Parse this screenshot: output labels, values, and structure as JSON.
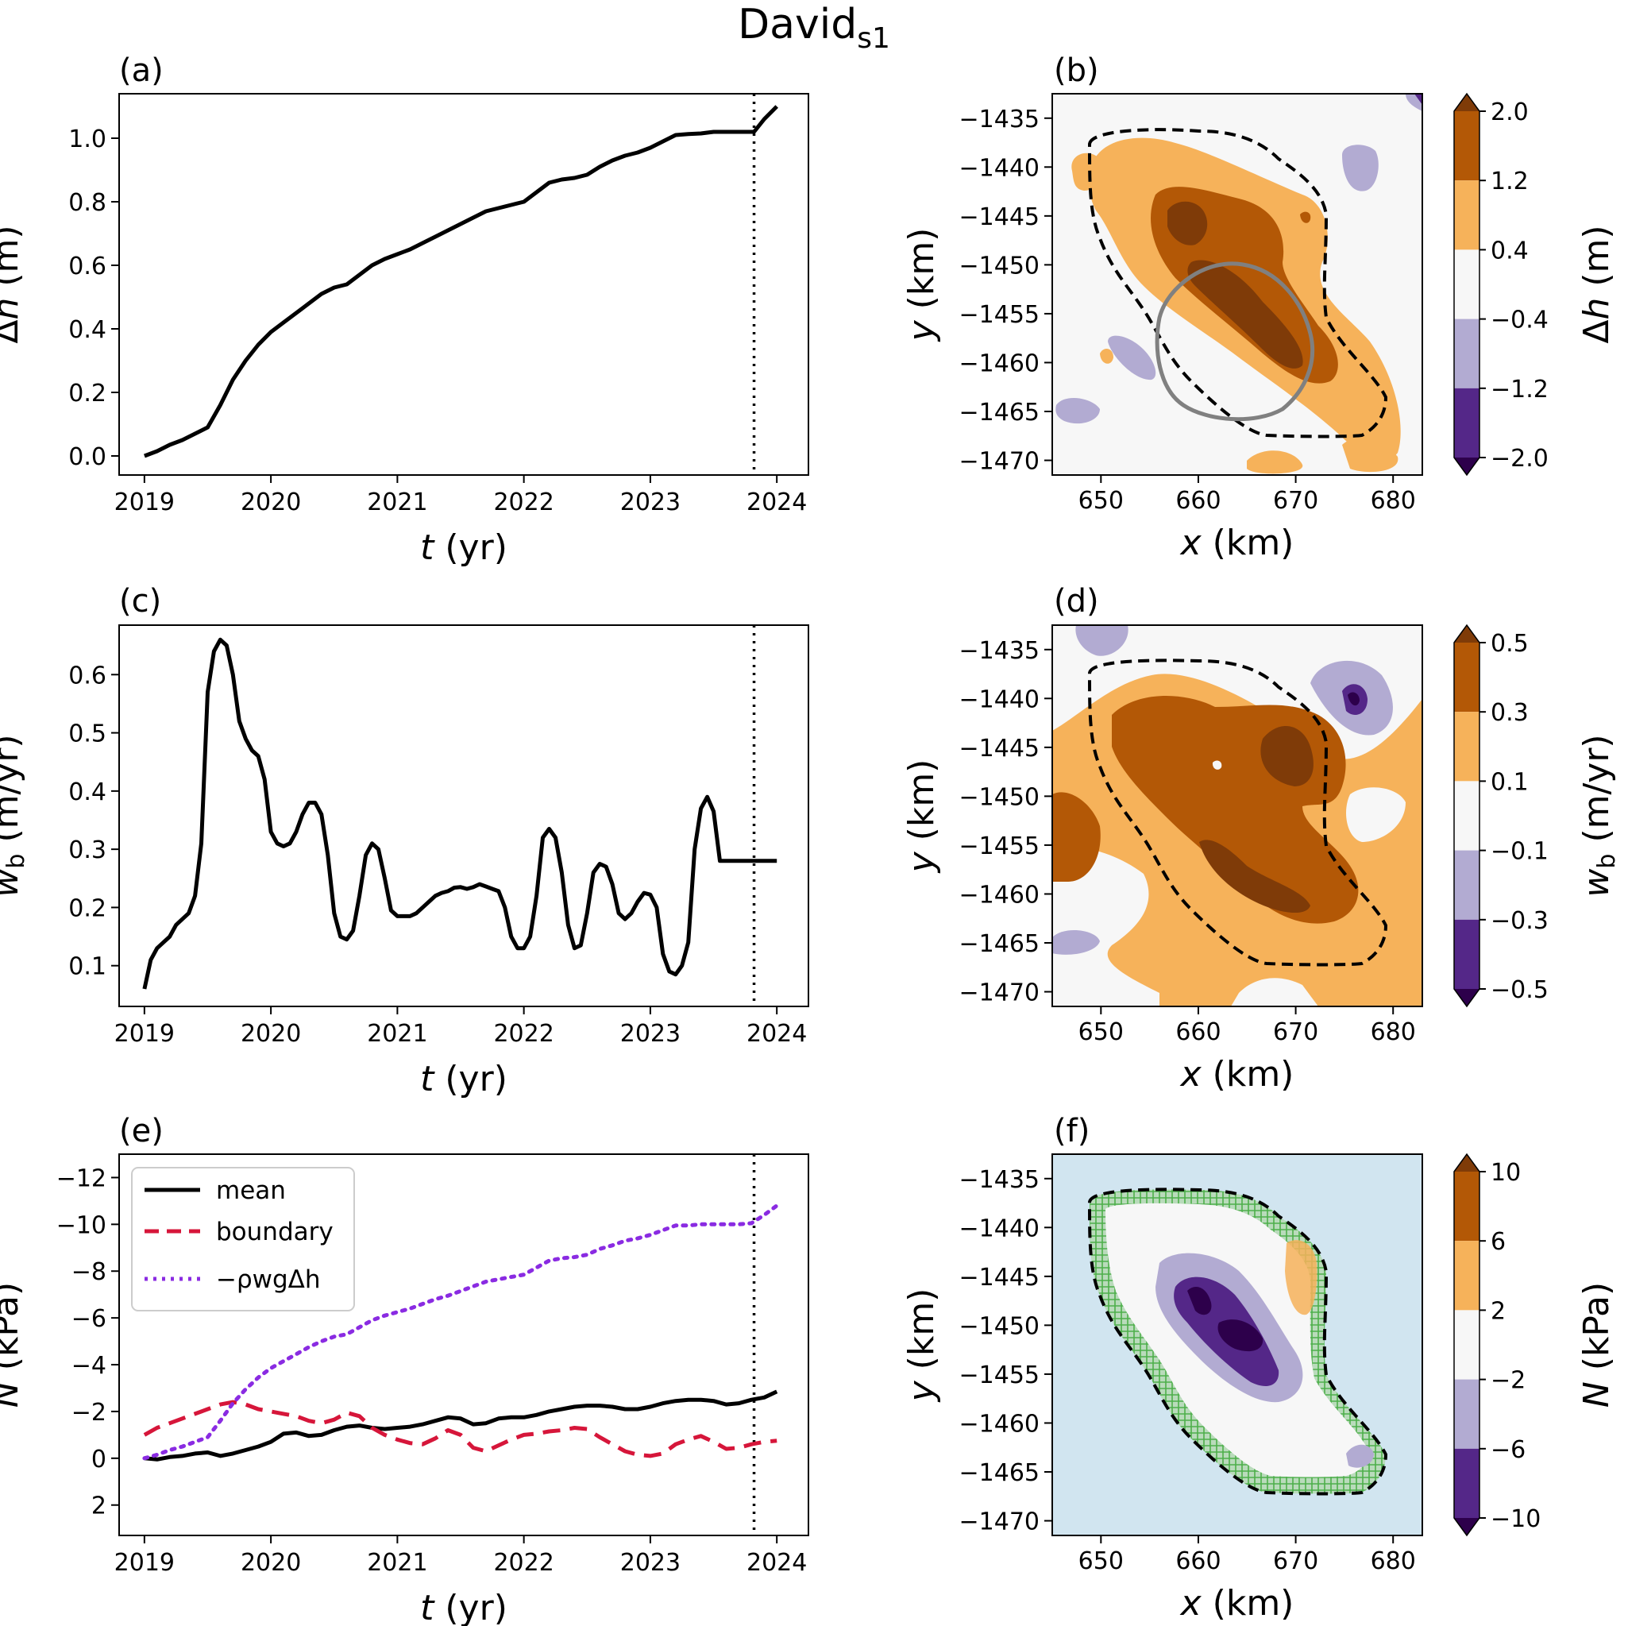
{
  "figure_title": "David",
  "figure_title_sub": "s1",
  "colors": {
    "brown_dark": "#7f3b08",
    "brown": "#b35806",
    "orange": "#f6b25a",
    "neutral": "#f7f7f7",
    "lavender": "#b2abd2",
    "purple": "#542788",
    "purple_dark": "#2d004b",
    "lake_bg": "#d1e5f0",
    "mesh": "#4daf4a",
    "outline_gray": "#808080",
    "boundary_red": "#d6163a",
    "rho_purple": "#8a2be2"
  },
  "chart_data": [
    {
      "panel": "(a)",
      "type": "line",
      "xlabel": "t (yr)",
      "ylabel": "Δh (m)",
      "xlim": [
        2018.8,
        2024.25
      ],
      "ylim": [
        -0.06,
        1.14
      ],
      "xticks": [
        2019,
        2020,
        2021,
        2022,
        2023,
        2024
      ],
      "yticks": [
        0.0,
        0.2,
        0.4,
        0.6,
        0.8,
        1.0
      ],
      "ytick_labels": [
        "0.0",
        "0.2",
        "0.4",
        "0.6",
        "0.8",
        "1.0"
      ],
      "vline": 2023.82,
      "series": [
        {
          "name": "mean Δh",
          "style": "solid",
          "color": "#000000",
          "x": [
            2019.0,
            2019.1,
            2019.2,
            2019.3,
            2019.4,
            2019.5,
            2019.6,
            2019.7,
            2019.8,
            2019.9,
            2020.0,
            2020.1,
            2020.2,
            2020.3,
            2020.4,
            2020.5,
            2020.6,
            2020.7,
            2020.8,
            2020.9,
            2021.0,
            2021.1,
            2021.2,
            2021.3,
            2021.4,
            2021.5,
            2021.6,
            2021.7,
            2021.8,
            2021.9,
            2022.0,
            2022.1,
            2022.2,
            2022.3,
            2022.4,
            2022.5,
            2022.6,
            2022.7,
            2022.8,
            2022.9,
            2023.0,
            2023.1,
            2023.2,
            2023.3,
            2023.4,
            2023.5,
            2023.6,
            2023.7,
            2023.82,
            2023.9,
            2024.0
          ],
          "y": [
            0.0,
            0.015,
            0.035,
            0.05,
            0.07,
            0.09,
            0.16,
            0.24,
            0.3,
            0.35,
            0.39,
            0.42,
            0.45,
            0.48,
            0.51,
            0.53,
            0.54,
            0.57,
            0.6,
            0.62,
            0.635,
            0.65,
            0.67,
            0.69,
            0.71,
            0.73,
            0.75,
            0.77,
            0.78,
            0.79,
            0.8,
            0.83,
            0.86,
            0.87,
            0.875,
            0.885,
            0.91,
            0.93,
            0.945,
            0.955,
            0.97,
            0.99,
            1.01,
            1.013,
            1.015,
            1.02,
            1.02,
            1.02,
            1.02,
            1.06,
            1.1
          ]
        }
      ]
    },
    {
      "panel": "(b)",
      "type": "heatmap",
      "xlabel": "x (km)",
      "ylabel": "y (km)",
      "xlim": [
        645,
        683
      ],
      "ylim": [
        -1471.5,
        -1432.5
      ],
      "xticks": [
        650,
        660,
        670,
        680
      ],
      "yticks": [
        -1435,
        -1440,
        -1445,
        -1450,
        -1455,
        -1460,
        -1465,
        -1470
      ],
      "ytick_labels": [
        "−1435",
        "−1440",
        "−1445",
        "−1450",
        "−1455",
        "−1460",
        "−1465",
        "−1470"
      ],
      "colorbar": {
        "label": "Δh (m)",
        "levels": [
          2.0,
          1.2,
          0.4,
          -0.4,
          -1.2,
          -2.0
        ],
        "level_labels": [
          "2.0",
          "1.2",
          "0.4",
          "−0.4",
          "−1.2",
          "−2.0"
        ],
        "extend": "both"
      },
      "overlays": [
        "dashed lake outline",
        "gray circle outline"
      ]
    },
    {
      "panel": "(c)",
      "type": "line",
      "xlabel": "t (yr)",
      "ylabel": "w_b (m/yr)",
      "xlim": [
        2018.8,
        2024.25
      ],
      "ylim": [
        0.03,
        0.685
      ],
      "xticks": [
        2019,
        2020,
        2021,
        2022,
        2023,
        2024
      ],
      "yticks": [
        0.1,
        0.2,
        0.3,
        0.4,
        0.5,
        0.6
      ],
      "ytick_labels": [
        "0.1",
        "0.2",
        "0.3",
        "0.4",
        "0.5",
        "0.6"
      ],
      "vline": 2023.82,
      "series": [
        {
          "name": "mean w_b",
          "style": "solid",
          "color": "#000000",
          "x": [
            2019.0,
            2019.05,
            2019.1,
            2019.15,
            2019.2,
            2019.25,
            2019.3,
            2019.35,
            2019.4,
            2019.45,
            2019.5,
            2019.55,
            2019.6,
            2019.65,
            2019.7,
            2019.75,
            2019.8,
            2019.85,
            2019.9,
            2019.95,
            2020.0,
            2020.05,
            2020.1,
            2020.15,
            2020.2,
            2020.25,
            2020.3,
            2020.35,
            2020.4,
            2020.45,
            2020.5,
            2020.55,
            2020.6,
            2020.65,
            2020.7,
            2020.75,
            2020.8,
            2020.85,
            2020.9,
            2020.95,
            2021.0,
            2021.05,
            2021.1,
            2021.15,
            2021.2,
            2021.25,
            2021.3,
            2021.35,
            2021.4,
            2021.45,
            2021.5,
            2021.55,
            2021.6,
            2021.65,
            2021.7,
            2021.75,
            2021.8,
            2021.85,
            2021.9,
            2021.95,
            2022.0,
            2022.05,
            2022.1,
            2022.15,
            2022.2,
            2022.25,
            2022.3,
            2022.35,
            2022.4,
            2022.45,
            2022.5,
            2022.55,
            2022.6,
            2022.65,
            2022.7,
            2022.75,
            2022.8,
            2022.85,
            2022.9,
            2022.95,
            2023.0,
            2023.05,
            2023.1,
            2023.15,
            2023.2,
            2023.25,
            2023.3,
            2023.35,
            2023.4,
            2023.45,
            2023.5,
            2023.55,
            2023.6,
            2023.65,
            2023.7,
            2023.75,
            2023.8,
            2023.85,
            2023.9,
            2023.95,
            2024.0
          ],
          "y": [
            0.06,
            0.11,
            0.13,
            0.14,
            0.15,
            0.17,
            0.18,
            0.19,
            0.22,
            0.31,
            0.57,
            0.64,
            0.66,
            0.65,
            0.6,
            0.52,
            0.49,
            0.47,
            0.46,
            0.42,
            0.33,
            0.31,
            0.305,
            0.31,
            0.33,
            0.36,
            0.38,
            0.38,
            0.36,
            0.29,
            0.19,
            0.15,
            0.145,
            0.16,
            0.22,
            0.29,
            0.31,
            0.3,
            0.25,
            0.195,
            0.185,
            0.185,
            0.185,
            0.19,
            0.2,
            0.21,
            0.22,
            0.225,
            0.228,
            0.234,
            0.235,
            0.232,
            0.235,
            0.24,
            0.236,
            0.232,
            0.228,
            0.2,
            0.15,
            0.13,
            0.13,
            0.15,
            0.22,
            0.32,
            0.335,
            0.32,
            0.26,
            0.17,
            0.13,
            0.135,
            0.19,
            0.26,
            0.275,
            0.27,
            0.24,
            0.19,
            0.18,
            0.19,
            0.21,
            0.225,
            0.222,
            0.2,
            0.12,
            0.09,
            0.085,
            0.1,
            0.14,
            0.3,
            0.37,
            0.39,
            0.365,
            0.28,
            0.28,
            0.28,
            0.28,
            0.28,
            0.28,
            0.28,
            0.28,
            0.28,
            0.28
          ]
        }
      ]
    },
    {
      "panel": "(d)",
      "type": "heatmap",
      "xlabel": "x (km)",
      "ylabel": "y (km)",
      "xlim": [
        645,
        683
      ],
      "ylim": [
        -1471.5,
        -1432.5
      ],
      "xticks": [
        650,
        660,
        670,
        680
      ],
      "yticks": [
        -1435,
        -1440,
        -1445,
        -1450,
        -1455,
        -1460,
        -1465,
        -1470
      ],
      "ytick_labels": [
        "−1435",
        "−1440",
        "−1445",
        "−1450",
        "−1455",
        "−1460",
        "−1465",
        "−1470"
      ],
      "colorbar": {
        "label": "w_b (m/yr)",
        "levels": [
          0.5,
          0.3,
          0.1,
          -0.1,
          -0.3,
          -0.5
        ],
        "level_labels": [
          "0.5",
          "0.3",
          "0.1",
          "−0.1",
          "−0.3",
          "−0.5"
        ],
        "extend": "both"
      },
      "overlays": [
        "dashed lake outline"
      ]
    },
    {
      "panel": "(e)",
      "type": "line",
      "xlabel": "t (yr)",
      "ylabel": "N (kPa)",
      "xlim": [
        2018.8,
        2024.25
      ],
      "ylim": [
        3.3,
        -13.0
      ],
      "inverted_y": true,
      "xticks": [
        2019,
        2020,
        2021,
        2022,
        2023,
        2024
      ],
      "yticks": [
        -12,
        -10,
        -8,
        -6,
        -4,
        -2,
        0,
        2
      ],
      "ytick_labels": [
        "−12",
        "−10",
        "−8",
        "−6",
        "−4",
        "−2",
        "0",
        "2"
      ],
      "vline": 2023.82,
      "legend": {
        "placement": "top-left",
        "entries": [
          "mean",
          "boundary",
          "−ρwgΔh"
        ]
      },
      "series": [
        {
          "name": "mean",
          "style": "solid",
          "color": "#000000",
          "x": [
            2019.0,
            2019.1,
            2019.2,
            2019.3,
            2019.4,
            2019.5,
            2019.6,
            2019.7,
            2019.8,
            2019.9,
            2020.0,
            2020.1,
            2020.2,
            2020.3,
            2020.4,
            2020.5,
            2020.6,
            2020.7,
            2020.8,
            2020.9,
            2021.0,
            2021.1,
            2021.2,
            2021.3,
            2021.4,
            2021.5,
            2021.6,
            2021.7,
            2021.8,
            2021.9,
            2022.0,
            2022.1,
            2022.2,
            2022.3,
            2022.4,
            2022.5,
            2022.6,
            2022.7,
            2022.8,
            2022.9,
            2023.0,
            2023.1,
            2023.2,
            2023.3,
            2023.4,
            2023.5,
            2023.6,
            2023.7,
            2023.8,
            2023.9,
            2024.0
          ],
          "y": [
            0.0,
            0.05,
            -0.05,
            -0.1,
            -0.2,
            -0.25,
            -0.1,
            -0.2,
            -0.35,
            -0.5,
            -0.7,
            -1.05,
            -1.1,
            -0.95,
            -1.0,
            -1.2,
            -1.35,
            -1.4,
            -1.3,
            -1.25,
            -1.3,
            -1.35,
            -1.45,
            -1.6,
            -1.75,
            -1.7,
            -1.45,
            -1.5,
            -1.7,
            -1.75,
            -1.75,
            -1.85,
            -2.0,
            -2.1,
            -2.2,
            -2.25,
            -2.25,
            -2.2,
            -2.1,
            -2.1,
            -2.2,
            -2.35,
            -2.45,
            -2.5,
            -2.5,
            -2.45,
            -2.3,
            -2.35,
            -2.5,
            -2.6,
            -2.85
          ]
        },
        {
          "name": "boundary",
          "style": "dashed",
          "color": "#d6163a",
          "x": [
            2019.0,
            2019.1,
            2019.2,
            2019.3,
            2019.4,
            2019.5,
            2019.6,
            2019.7,
            2019.8,
            2019.9,
            2020.0,
            2020.1,
            2020.2,
            2020.3,
            2020.4,
            2020.5,
            2020.6,
            2020.7,
            2020.8,
            2020.9,
            2021.0,
            2021.1,
            2021.2,
            2021.3,
            2021.4,
            2021.5,
            2021.6,
            2021.7,
            2021.8,
            2021.9,
            2022.0,
            2022.1,
            2022.2,
            2022.3,
            2022.4,
            2022.5,
            2022.6,
            2022.7,
            2022.8,
            2022.9,
            2023.0,
            2023.1,
            2023.2,
            2023.3,
            2023.4,
            2023.5,
            2023.6,
            2023.7,
            2023.8,
            2023.9,
            2024.0
          ],
          "y": [
            -1.0,
            -1.3,
            -1.5,
            -1.7,
            -1.9,
            -2.1,
            -2.3,
            -2.4,
            -2.3,
            -2.1,
            -2.0,
            -1.9,
            -1.8,
            -1.6,
            -1.5,
            -1.65,
            -1.95,
            -1.8,
            -1.3,
            -1.0,
            -0.8,
            -0.65,
            -0.6,
            -0.85,
            -1.2,
            -1.0,
            -0.45,
            -0.3,
            -0.55,
            -0.8,
            -1.0,
            -1.05,
            -1.15,
            -1.2,
            -1.3,
            -1.25,
            -0.9,
            -0.6,
            -0.3,
            -0.15,
            -0.1,
            -0.2,
            -0.6,
            -0.8,
            -0.95,
            -0.7,
            -0.4,
            -0.45,
            -0.6,
            -0.7,
            -0.75
          ]
        },
        {
          "name": "−ρwgΔh",
          "style": "dotted",
          "color": "#8a2be2",
          "x": [
            2019.0,
            2019.1,
            2019.2,
            2019.3,
            2019.4,
            2019.5,
            2019.6,
            2019.7,
            2019.8,
            2019.9,
            2020.0,
            2020.1,
            2020.2,
            2020.3,
            2020.4,
            2020.5,
            2020.6,
            2020.7,
            2020.8,
            2020.9,
            2021.0,
            2021.1,
            2021.2,
            2021.3,
            2021.4,
            2021.5,
            2021.6,
            2021.7,
            2021.8,
            2021.9,
            2022.0,
            2022.1,
            2022.2,
            2022.3,
            2022.4,
            2022.5,
            2022.6,
            2022.7,
            2022.8,
            2022.9,
            2023.0,
            2023.1,
            2023.2,
            2023.3,
            2023.4,
            2023.5,
            2023.6,
            2023.7,
            2023.8,
            2023.9,
            2024.0
          ],
          "y": [
            0.0,
            -0.15,
            -0.35,
            -0.5,
            -0.7,
            -0.9,
            -1.6,
            -2.35,
            -2.95,
            -3.45,
            -3.85,
            -4.15,
            -4.45,
            -4.75,
            -5.0,
            -5.2,
            -5.3,
            -5.6,
            -5.9,
            -6.1,
            -6.25,
            -6.4,
            -6.6,
            -6.8,
            -6.95,
            -7.15,
            -7.35,
            -7.55,
            -7.65,
            -7.75,
            -7.85,
            -8.15,
            -8.45,
            -8.55,
            -8.6,
            -8.7,
            -8.95,
            -9.1,
            -9.3,
            -9.4,
            -9.55,
            -9.75,
            -9.95,
            -9.95,
            -10.0,
            -10.0,
            -10.0,
            -10.0,
            -10.05,
            -10.4,
            -10.8
          ]
        }
      ]
    },
    {
      "panel": "(f)",
      "type": "heatmap",
      "xlabel": "x (km)",
      "ylabel": "y (km)",
      "xlim": [
        645,
        683
      ],
      "ylim": [
        -1471.5,
        -1432.5
      ],
      "xticks": [
        650,
        660,
        670,
        680
      ],
      "yticks": [
        -1435,
        -1440,
        -1445,
        -1450,
        -1455,
        -1460,
        -1465,
        -1470
      ],
      "ytick_labels": [
        "−1435",
        "−1440",
        "−1445",
        "−1450",
        "−1455",
        "−1460",
        "−1465",
        "−1470"
      ],
      "colorbar": {
        "label": "N (kPa)",
        "levels": [
          10,
          6,
          2,
          -2,
          -6,
          -10
        ],
        "level_labels": [
          "10",
          "6",
          "2",
          "−2",
          "−6",
          "−10"
        ],
        "extend": "both"
      },
      "overlays": [
        "dashed lake outline",
        "green hatched boundary band"
      ]
    }
  ],
  "legend_labels": {
    "mean": "mean",
    "boundary": "boundary",
    "rho": "−ρwgΔh"
  }
}
